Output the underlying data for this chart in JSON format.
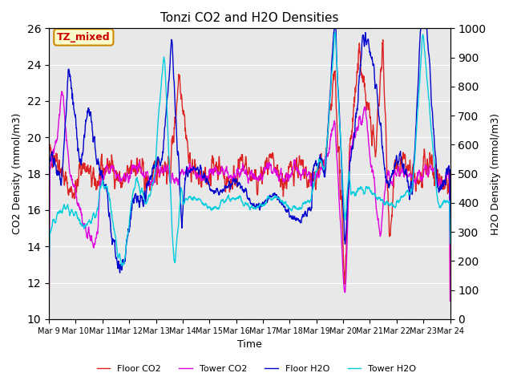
{
  "title": "Tonzi CO2 and H2O Densities",
  "xlabel": "Time",
  "ylabel_left": "CO2 Density (mmol/m3)",
  "ylabel_right": "H2O Density (mmol/m3)",
  "ylim_left": [
    10,
    26
  ],
  "ylim_right": [
    0,
    1000
  ],
  "yticks_left": [
    10,
    12,
    14,
    16,
    18,
    20,
    22,
    24,
    26
  ],
  "yticks_right": [
    0,
    100,
    200,
    300,
    400,
    500,
    600,
    700,
    800,
    900,
    1000
  ],
  "xtick_labels": [
    "Mar 9",
    "Mar 10",
    "Mar 11",
    "Mar 12",
    "Mar 13",
    "Mar 14",
    "Mar 15",
    "Mar 16",
    "Mar 17",
    "Mar 18",
    "Mar 19",
    "Mar 20",
    "Mar 21",
    "Mar 22",
    "Mar 23",
    "Mar 24"
  ],
  "annotation_text": "TZ_mixed",
  "annotation_color": "#cc0000",
  "annotation_bg": "#ffffcc",
  "annotation_border": "#cc8800",
  "background_color": "#e8e8e8",
  "line_colors": {
    "floor_co2": "#dd2222",
    "tower_co2": "#dd00dd",
    "floor_h2o": "#0000cc",
    "tower_h2o": "#00ccdd"
  },
  "legend_labels": [
    "Floor CO2",
    "Tower CO2",
    "Floor H2O",
    "Tower H2O"
  ],
  "seed": 42
}
